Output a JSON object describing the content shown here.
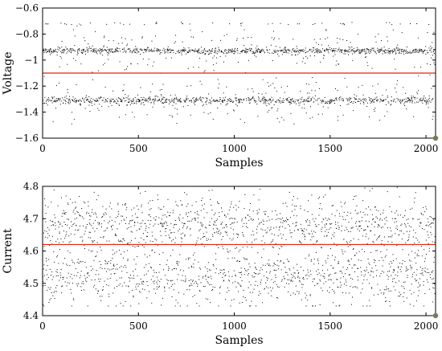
{
  "chart_data": [
    {
      "type": "scatter",
      "xlabel": "Samples",
      "ylabel": "Voltage",
      "xlim": [
        0,
        2050
      ],
      "ylim": [
        -1.6,
        -0.6
      ],
      "xticks": [
        0,
        500,
        1000,
        1500,
        2000
      ],
      "yticks": [
        -1.6,
        -1.4,
        -1.2,
        -1.0,
        -0.8,
        -0.6
      ],
      "ytick_labels": [
        "−1.6",
        "−1.4",
        "−1.2",
        "−1",
        "−0.8",
        "−0.6"
      ],
      "n_samples": 2048,
      "series": [
        {
          "kind": "points",
          "color": "#000000",
          "clusters": [
            -0.93,
            -1.31
          ],
          "outlier_level": -0.72,
          "range": [
            -1.5,
            -0.7
          ]
        },
        {
          "kind": "hline",
          "color": "#e8220f",
          "value": -1.1
        }
      ],
      "marker_color": "#7a7a5a"
    },
    {
      "type": "scatter",
      "xlabel": "Samples",
      "ylabel": "Current",
      "xlim": [
        0,
        2050
      ],
      "ylim": [
        4.4,
        4.8
      ],
      "xticks": [
        0,
        500,
        1000,
        1500,
        2000
      ],
      "yticks": [
        4.4,
        4.5,
        4.6,
        4.7,
        4.8
      ],
      "ytick_labels": [
        "4.4",
        "4.5",
        "4.6",
        "4.7",
        "4.8"
      ],
      "n_samples": 2048,
      "series": [
        {
          "kind": "points",
          "color": "#000000",
          "clusters": [
            4.68,
            4.52
          ],
          "range": [
            4.43,
            4.8
          ]
        },
        {
          "kind": "hline",
          "color": "#e8220f",
          "value": 4.62
        }
      ],
      "marker_color": "#7a7a5a"
    }
  ]
}
